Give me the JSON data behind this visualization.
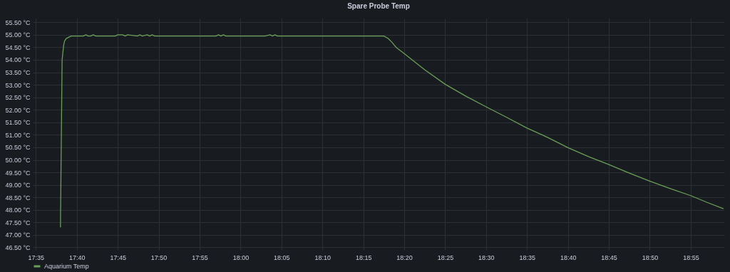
{
  "chart_data": {
    "type": "line",
    "title": "Spare Probe Temp",
    "xlim": [
      17.577,
      18.985
    ],
    "ylim": [
      46.4,
      55.65
    ],
    "xticks": [
      {
        "value": 17.5833,
        "label": "17:35"
      },
      {
        "value": 17.6667,
        "label": "17:40"
      },
      {
        "value": 17.75,
        "label": "17:45"
      },
      {
        "value": 17.8333,
        "label": "17:50"
      },
      {
        "value": 17.9167,
        "label": "17:55"
      },
      {
        "value": 18.0,
        "label": "18:00"
      },
      {
        "value": 18.0833,
        "label": "18:05"
      },
      {
        "value": 18.1667,
        "label": "18:10"
      },
      {
        "value": 18.25,
        "label": "18:15"
      },
      {
        "value": 18.3333,
        "label": "18:20"
      },
      {
        "value": 18.4167,
        "label": "18:25"
      },
      {
        "value": 18.5,
        "label": "18:30"
      },
      {
        "value": 18.5833,
        "label": "18:35"
      },
      {
        "value": 18.6667,
        "label": "18:40"
      },
      {
        "value": 18.75,
        "label": "18:45"
      },
      {
        "value": 18.8333,
        "label": "18:50"
      },
      {
        "value": 18.9167,
        "label": "18:55"
      }
    ],
    "yticks": [
      {
        "value": 46.5,
        "label": "46.50 °C"
      },
      {
        "value": 47,
        "label": "47.00 °C"
      },
      {
        "value": 47.5,
        "label": "47.50 °C"
      },
      {
        "value": 48,
        "label": "48.00 °C"
      },
      {
        "value": 48.5,
        "label": "48.50 °C"
      },
      {
        "value": 49,
        "label": "49.00 °C"
      },
      {
        "value": 49.5,
        "label": "49.50 °C"
      },
      {
        "value": 50,
        "label": "50.00 °C"
      },
      {
        "value": 50.5,
        "label": "50.50 °C"
      },
      {
        "value": 51,
        "label": "51.00 °C"
      },
      {
        "value": 51.5,
        "label": "51.50 °C"
      },
      {
        "value": 52,
        "label": "52.00 °C"
      },
      {
        "value": 52.5,
        "label": "52.50 °C"
      },
      {
        "value": 53,
        "label": "53.00 °C"
      },
      {
        "value": 53.5,
        "label": "53.50 °C"
      },
      {
        "value": 54,
        "label": "54.00 °C"
      },
      {
        "value": 54.5,
        "label": "54.50 °C"
      },
      {
        "value": 55,
        "label": "55.00 °C"
      },
      {
        "value": 55.5,
        "label": "55.50 °C"
      }
    ],
    "grid": true,
    "legend": "bottom left",
    "marker": "none",
    "line_style": "solid",
    "series": [
      {
        "name": "Aquarium Temp",
        "color": "#6a9f58",
        "x": [
          17.6333,
          17.6367,
          17.64,
          17.6417,
          17.645,
          17.65,
          17.655,
          17.68,
          17.685,
          17.69,
          17.695,
          17.7,
          17.705,
          17.745,
          17.75,
          17.76,
          17.765,
          17.77,
          17.79,
          17.795,
          17.8,
          17.81,
          17.815,
          17.82,
          17.825,
          17.83,
          17.95,
          17.955,
          17.96,
          17.965,
          17.97,
          18.0,
          18.05,
          18.06,
          18.065,
          18.07,
          18.075,
          18.08,
          18.17,
          18.2917,
          18.3,
          18.3083,
          18.3167,
          18.3333,
          18.375,
          18.4167,
          18.4583,
          18.5,
          18.5417,
          18.5833,
          18.625,
          18.6667,
          18.7083,
          18.75,
          18.7917,
          18.8333,
          18.875,
          18.9167,
          18.95,
          18.9833
        ],
        "values": [
          47.3,
          54.0,
          54.6,
          54.75,
          54.85,
          54.9,
          54.95,
          54.95,
          55.0,
          54.95,
          54.95,
          55.0,
          54.95,
          54.95,
          55.0,
          55.0,
          54.95,
          55.0,
          54.95,
          55.0,
          54.95,
          55.0,
          54.95,
          55.0,
          54.95,
          54.95,
          54.95,
          55.0,
          54.95,
          55.0,
          54.95,
          54.95,
          54.95,
          55.0,
          54.95,
          55.0,
          54.95,
          54.95,
          54.95,
          54.95,
          54.86,
          54.7,
          54.5,
          54.25,
          53.6,
          53.02,
          52.55,
          52.12,
          51.7,
          51.27,
          50.9,
          50.49,
          50.13,
          49.81,
          49.47,
          49.15,
          48.85,
          48.57,
          48.3,
          48.05
        ]
      }
    ]
  }
}
